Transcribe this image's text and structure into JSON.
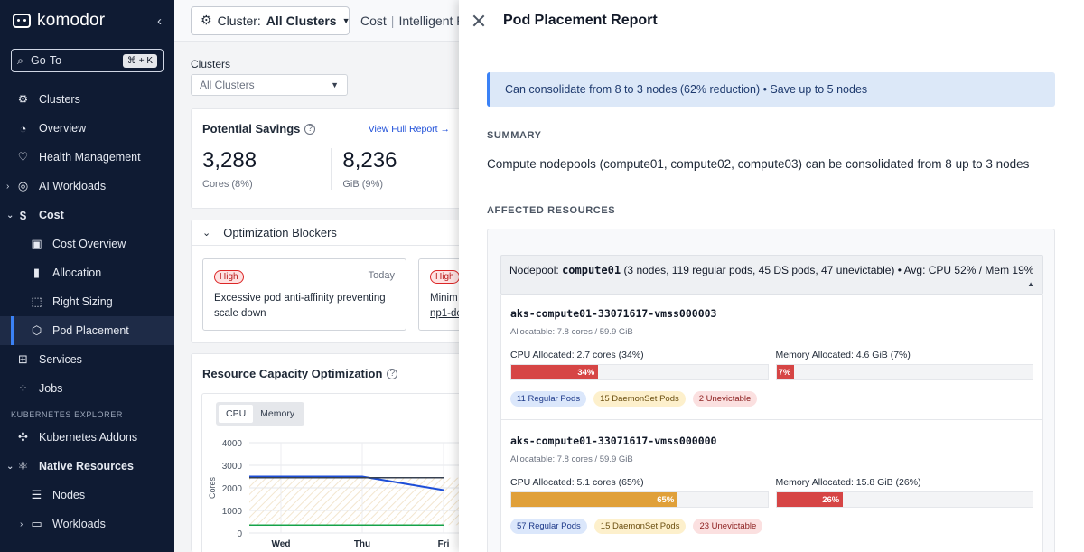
{
  "sidebar": {
    "logo": "komodor",
    "goto": {
      "label": "Go-To",
      "shortcut": "⌘ + K"
    },
    "items_top": [
      {
        "label": "Clusters",
        "icon": "clusters-icon"
      },
      {
        "label": "Overview",
        "icon": "gauge-icon"
      },
      {
        "label": "Health Management",
        "icon": "heart-icon"
      },
      {
        "label": "AI Workloads",
        "icon": "globe-icon"
      },
      {
        "label": "Cost",
        "icon": "dollar-icon"
      },
      {
        "label": "Cost Overview",
        "icon": "layout-icon"
      },
      {
        "label": "Allocation",
        "icon": "bar-chart-icon"
      },
      {
        "label": "Right Sizing",
        "icon": "crop-icon"
      },
      {
        "label": "Pod Placement",
        "icon": "cube-icon"
      },
      {
        "label": "Services",
        "icon": "grid-icon"
      },
      {
        "label": "Jobs",
        "icon": "jobs-icon"
      }
    ],
    "section_label": "KUBERNETES EXPLORER",
    "items_bottom": [
      {
        "label": "Kubernetes Addons",
        "icon": "puzzle-icon"
      },
      {
        "label": "Native Resources",
        "icon": "network-icon"
      },
      {
        "label": "Nodes",
        "icon": "server-icon"
      },
      {
        "label": "Workloads",
        "icon": "monitor-icon"
      }
    ]
  },
  "topbar": {
    "cluster_prefix": "Cluster:",
    "cluster_value": "All Clusters",
    "crumb_1": "Cost",
    "crumb_2": "Intelligent P"
  },
  "filters": {
    "label": "Clusters",
    "value": "All Clusters"
  },
  "savings": {
    "title": "Potential Savings",
    "link": "View Full Report",
    "cores_value": "3,288",
    "cores_label": "Cores (8%)",
    "gib_value": "8,236",
    "gib_label": "GiB (9%)"
  },
  "blockers": {
    "title": "Optimization Blockers",
    "items": [
      {
        "badge": "High",
        "when": "Today",
        "text": "Excessive pod anti-affinity preventing scale down"
      },
      {
        "badge": "High",
        "text_1": "Minim",
        "text_2": "np1-de"
      }
    ]
  },
  "capacity": {
    "title": "Resource Capacity Optimization",
    "tabs": [
      "CPU",
      "Memory"
    ],
    "active_tab": "CPU"
  },
  "chart_data": {
    "type": "line",
    "ylabel": "Cores",
    "ylim": [
      0,
      4000
    ],
    "yticks": [
      "4000",
      "3000",
      "2000",
      "1000",
      "0"
    ],
    "categories": [
      "Wed",
      "Thu",
      "Fri"
    ],
    "series": [
      {
        "color": "#1d4ed8",
        "values": [
          2500,
          2500,
          1900
        ]
      },
      {
        "color": "#374151",
        "values": [
          2450,
          2450,
          2450
        ]
      },
      {
        "color": "#16a34a",
        "values": [
          350,
          350,
          350
        ]
      }
    ]
  },
  "panel": {
    "title": "Pod Placement Report",
    "alert": "Can consolidate from 8 to 3 nodes (62% reduction) • Save up to 5 nodes",
    "summary_label": "SUMMARY",
    "summary_text": "Compute nodepools (compute01, compute02, compute03) can be consolidated from 8 up to 3 nodes",
    "affected_label": "AFFECTED RESOURCES",
    "nodepool_prefix": "Nodepool:",
    "nodepool_name": "compute01",
    "nodepool_details": "(3 nodes, 119 regular pods, 45 DS pods, 47 unevictable) • Avg: CPU 52% / Mem 19%",
    "nodes": [
      {
        "name": "aks-compute01-33071617-vmss000003",
        "allocatable": "Allocatable: 7.8 cores / 59.9 GiB",
        "cpu_label": "CPU Allocated: 2.7 cores (34%)",
        "cpu_pct": 34,
        "cpu_text": "34%",
        "mem_label": "Memory Allocated: 4.6 GiB (7%)",
        "mem_pct": 7,
        "mem_text": "7%",
        "pill_regular": "11 Regular Pods",
        "pill_ds": "15 DaemonSet Pods",
        "pill_unevictable": "2 Unevictable"
      },
      {
        "name": "aks-compute01-33071617-vmss000000",
        "allocatable": "Allocatable: 7.8 cores / 59.9 GiB",
        "cpu_label": "CPU Allocated: 5.1 cores (65%)",
        "cpu_pct": 65,
        "cpu_text": "65%",
        "mem_label": "Memory Allocated: 15.8 GiB (26%)",
        "mem_pct": 26,
        "mem_text": "26%",
        "pill_regular": "57 Regular Pods",
        "pill_ds": "15 DaemonSet Pods",
        "pill_unevictable": "23 Unevictable"
      }
    ]
  }
}
